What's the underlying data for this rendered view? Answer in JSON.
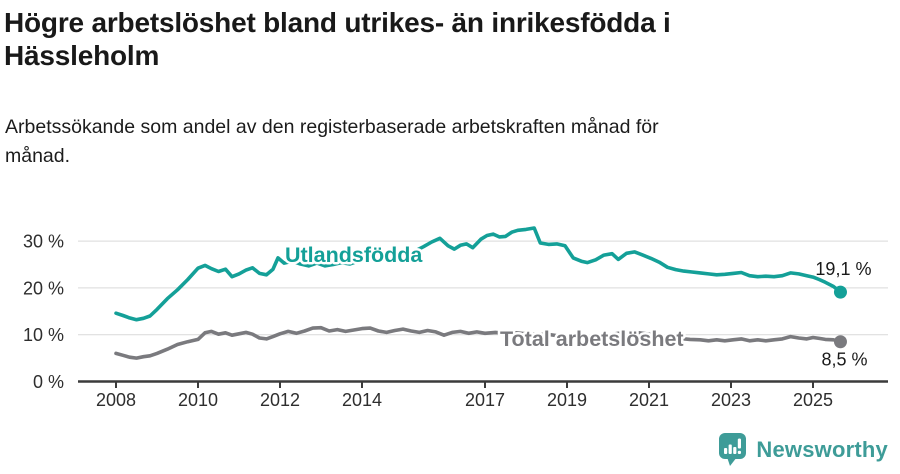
{
  "header": {
    "title_lines": [
      "Högre arbetslöshet bland utrikes- än inrikesfödda i",
      "Hässleholm"
    ],
    "subtitle_lines": [
      "Arbetssökande som andel av den registerbaserade arbetskraften månad för",
      "månad."
    ]
  },
  "footer": {
    "brand": "Newsworthy",
    "brand_color": "#3e9c98"
  },
  "chart_data": {
    "type": "line",
    "title": "Högre arbetslöshet bland utrikes- än inrikesfödda i Hässleholm",
    "xlabel": "",
    "ylabel": "Arbetssökande som andel av den registerbaserade arbetskraften",
    "grid": "horizontal-gridlines",
    "legend_position": "inline-labels-on-lines",
    "xlim": [
      2007.1,
      2026.4
    ],
    "ylim": [
      0,
      36
    ],
    "x_axis": {
      "ticks": [
        {
          "value": 2008,
          "label": "2008"
        },
        {
          "value": 2010,
          "label": "2010"
        },
        {
          "value": 2012,
          "label": "2012"
        },
        {
          "value": 2014,
          "label": "2014"
        },
        {
          "value": 2017,
          "label": "2017"
        },
        {
          "value": 2019,
          "label": "2019"
        },
        {
          "value": 2021,
          "label": "2021"
        },
        {
          "value": 2023,
          "label": "2023"
        },
        {
          "value": 2025,
          "label": "2025"
        }
      ]
    },
    "y_axis": {
      "ticks": [
        {
          "value": 0,
          "label": "0 %"
        },
        {
          "value": 10,
          "label": "10 %"
        },
        {
          "value": 20,
          "label": "20 %"
        },
        {
          "value": 30,
          "label": "30 %"
        }
      ]
    },
    "series": [
      {
        "name": "Utlandsfödda",
        "color": "#14a098",
        "end_label": "19,1 %",
        "end_value": 19.1,
        "x": [
          2008.0,
          2008.17,
          2008.33,
          2008.5,
          2008.67,
          2008.83,
          2009.0,
          2009.25,
          2009.5,
          2009.75,
          2010.0,
          2010.17,
          2010.33,
          2010.5,
          2010.67,
          2010.83,
          2011.0,
          2011.17,
          2011.33,
          2011.5,
          2011.67,
          2011.83,
          2011.95,
          2012.1,
          2012.3,
          2012.5,
          2012.7,
          2012.9,
          2013.1,
          2013.3,
          2013.5,
          2013.7,
          2013.9,
          2014.1,
          2014.3,
          2014.5,
          2014.7,
          2014.9,
          2015.1,
          2015.3,
          2015.5,
          2015.7,
          2015.9,
          2016.1,
          2016.25,
          2016.4,
          2016.55,
          2016.7,
          2016.9,
          2017.05,
          2017.2,
          2017.35,
          2017.5,
          2017.65,
          2017.8,
          2018.0,
          2018.2,
          2018.35,
          2018.55,
          2018.75,
          2018.95,
          2019.15,
          2019.35,
          2019.5,
          2019.7,
          2019.9,
          2020.1,
          2020.25,
          2020.45,
          2020.65,
          2020.85,
          2021.05,
          2021.25,
          2021.45,
          2021.65,
          2021.85,
          2022.05,
          2022.25,
          2022.45,
          2022.65,
          2022.85,
          2023.05,
          2023.25,
          2023.45,
          2023.65,
          2023.85,
          2024.05,
          2024.25,
          2024.45,
          2024.65,
          2024.85,
          2025.0,
          2025.15,
          2025.3,
          2025.5,
          2025.67
        ],
        "values": [
          14.6,
          14.1,
          13.6,
          13.2,
          13.5,
          14.0,
          15.4,
          17.7,
          19.6,
          21.8,
          24.2,
          24.8,
          24.1,
          23.5,
          24.0,
          22.4,
          23.0,
          23.8,
          24.3,
          23.1,
          22.8,
          24.0,
          26.4,
          25.3,
          25.7,
          25.1,
          24.7,
          25.3,
          24.7,
          25.0,
          25.4,
          25.1,
          25.7,
          26.0,
          26.3,
          25.9,
          26.4,
          26.9,
          27.3,
          27.9,
          28.8,
          29.8,
          30.6,
          29.0,
          28.3,
          29.1,
          29.4,
          28.6,
          30.4,
          31.2,
          31.5,
          30.9,
          31.0,
          31.9,
          32.3,
          32.5,
          32.8,
          29.6,
          29.3,
          29.4,
          29.0,
          26.4,
          25.7,
          25.4,
          26.0,
          27.0,
          27.3,
          26.1,
          27.4,
          27.7,
          27.0,
          26.3,
          25.5,
          24.4,
          23.9,
          23.6,
          23.4,
          23.2,
          23.0,
          22.8,
          22.9,
          23.1,
          23.3,
          22.6,
          22.4,
          22.5,
          22.4,
          22.6,
          23.2,
          23.0,
          22.6,
          22.3,
          21.8,
          21.2,
          20.3,
          19.1
        ]
      },
      {
        "name": "Total arbetslöshet",
        "color": "#7a7a7e",
        "end_label": "8,5 %",
        "end_value": 8.5,
        "x": [
          2008.0,
          2008.17,
          2008.33,
          2008.5,
          2008.67,
          2008.83,
          2009.0,
          2009.25,
          2009.5,
          2009.75,
          2010.0,
          2010.17,
          2010.33,
          2010.5,
          2010.67,
          2010.83,
          2011.0,
          2011.17,
          2011.33,
          2011.5,
          2011.67,
          2011.83,
          2012.0,
          2012.2,
          2012.4,
          2012.6,
          2012.8,
          2013.0,
          2013.2,
          2013.4,
          2013.6,
          2013.8,
          2014.0,
          2014.2,
          2014.4,
          2014.6,
          2014.8,
          2015.0,
          2015.2,
          2015.4,
          2015.6,
          2015.8,
          2016.0,
          2016.2,
          2016.4,
          2016.6,
          2016.8,
          2017.0,
          2017.25,
          2017.5,
          2017.75,
          2018.0,
          2018.25,
          2018.5,
          2018.75,
          2019.0,
          2019.25,
          2019.5,
          2019.75,
          2020.0,
          2020.25,
          2020.5,
          2020.75,
          2021.0,
          2021.25,
          2021.5,
          2021.75,
          2022.0,
          2022.25,
          2022.45,
          2022.65,
          2022.85,
          2023.05,
          2023.25,
          2023.45,
          2023.65,
          2023.85,
          2024.05,
          2024.25,
          2024.45,
          2024.65,
          2024.85,
          2025.0,
          2025.15,
          2025.3,
          2025.5,
          2025.67
        ],
        "values": [
          6.0,
          5.6,
          5.2,
          5.0,
          5.3,
          5.5,
          6.0,
          6.9,
          7.9,
          8.5,
          9.0,
          10.4,
          10.7,
          10.1,
          10.4,
          9.9,
          10.2,
          10.5,
          10.1,
          9.3,
          9.1,
          9.6,
          10.2,
          10.7,
          10.3,
          10.8,
          11.4,
          11.5,
          10.8,
          11.1,
          10.7,
          11.0,
          11.3,
          11.4,
          10.8,
          10.5,
          10.9,
          11.2,
          10.8,
          10.5,
          10.9,
          10.6,
          9.9,
          10.5,
          10.7,
          10.3,
          10.6,
          10.3,
          10.5,
          10.3,
          10.4,
          10.2,
          10.0,
          10.1,
          9.8,
          9.6,
          9.4,
          9.5,
          9.7,
          9.9,
          10.3,
          10.1,
          10.4,
          10.1,
          9.7,
          9.4,
          9.2,
          9.0,
          8.9,
          8.7,
          8.9,
          8.7,
          8.9,
          9.1,
          8.7,
          8.9,
          8.7,
          8.9,
          9.1,
          9.6,
          9.3,
          9.1,
          9.4,
          9.2,
          9.0,
          8.9,
          8.5
        ]
      }
    ]
  }
}
